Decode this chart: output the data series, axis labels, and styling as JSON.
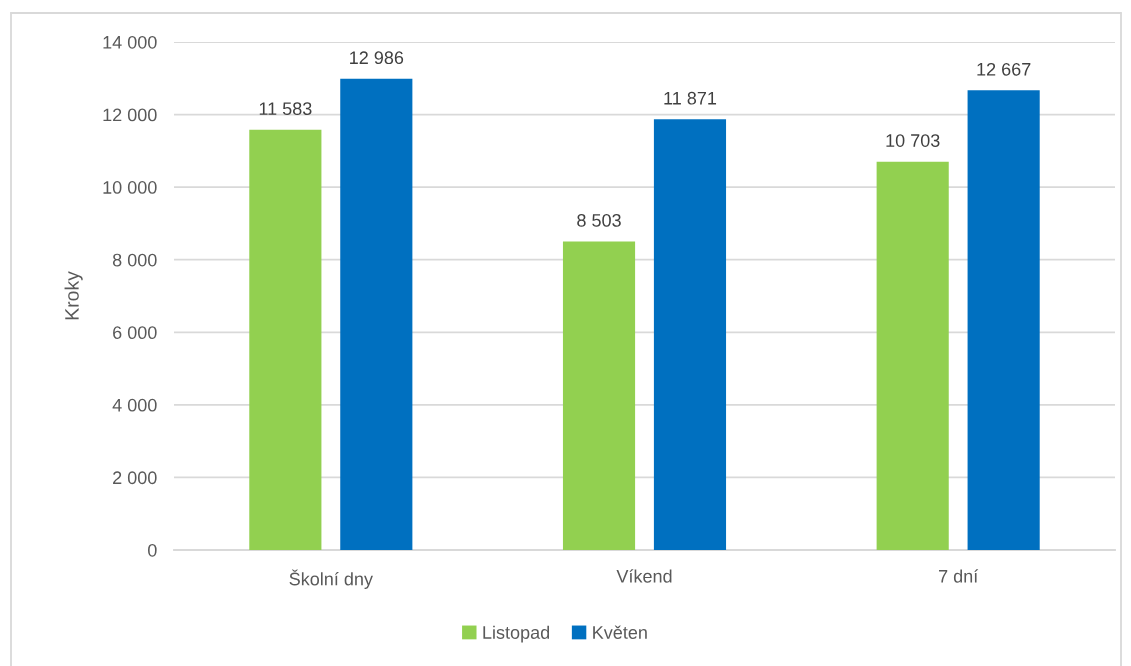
{
  "chart_data": {
    "type": "bar",
    "categories": [
      "Školní dny",
      "Víkend",
      "7 dní"
    ],
    "ylabel": "Kroky",
    "series": [
      {
        "name": "Listopad",
        "color": "#92d050",
        "values": [
          11583,
          8503,
          10703
        ],
        "value_labels": [
          "11 583",
          "8 503",
          "10 703"
        ]
      },
      {
        "name": "Květen",
        "color": "#0070c0",
        "values": [
          12986,
          11871,
          12667
        ],
        "value_labels": [
          "12 986",
          "11 871",
          "12 667"
        ]
      }
    ],
    "ylim": [
      0,
      14000
    ],
    "yticks": [
      0,
      {
        "value": 2000,
        "label": "2 000"
      },
      {
        "value": 4000,
        "label": "4 000"
      },
      {
        "value": 6000,
        "label": "6 000"
      },
      {
        "value": 8000,
        "label": "8 000"
      },
      {
        "value": 10000,
        "label": "10 000"
      },
      {
        "value": 12000,
        "label": "12 000"
      },
      {
        "value": 14000,
        "label": "14 000"
      }
    ],
    "grid": "y",
    "legend": "bottom"
  }
}
